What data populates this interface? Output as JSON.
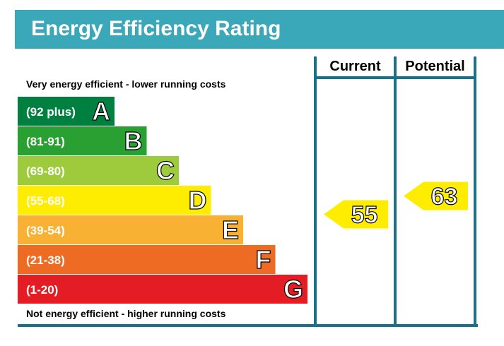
{
  "title": "Energy Efficiency Rating",
  "chart_data": {
    "type": "bar",
    "top_note": "Very energy efficient - lower running costs",
    "bottom_note": "Not energy efficient - higher running costs",
    "columns": [
      "Current",
      "Potential"
    ],
    "bands": [
      {
        "letter": "A",
        "range": "(92 plus)",
        "color": "#008040"
      },
      {
        "letter": "B",
        "range": "(81-91)",
        "color": "#2aa033"
      },
      {
        "letter": "C",
        "range": "(69-80)",
        "color": "#9dcb3c"
      },
      {
        "letter": "D",
        "range": "(55-68)",
        "color": "#ffed00"
      },
      {
        "letter": "E",
        "range": "(39-54)",
        "color": "#f8b133"
      },
      {
        "letter": "F",
        "range": "(21-38)",
        "color": "#ed6b23"
      },
      {
        "letter": "G",
        "range": "(1-20)",
        "color": "#e31d23"
      }
    ],
    "ratings": [
      {
        "column": "Current",
        "value": 55,
        "band": "D",
        "color": "#ffed00"
      },
      {
        "column": "Potential",
        "value": 63,
        "band": "D",
        "color": "#ffed00"
      }
    ],
    "frame_color": "#1b6f86"
  }
}
